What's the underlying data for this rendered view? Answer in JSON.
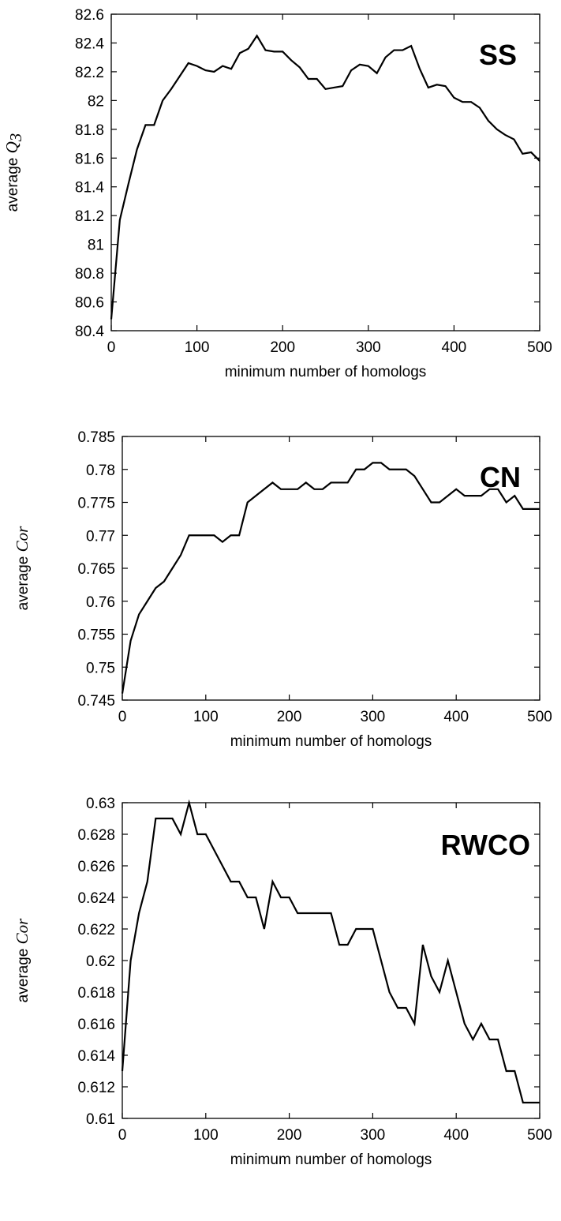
{
  "chart_data": [
    {
      "type": "line",
      "panel_label": "SS",
      "xlabel": "minimum number of homologs",
      "ylabel_prefix": "average",
      "ylabel_symbol": "Q",
      "ylabel_subscript": "3",
      "xlim": [
        0,
        500
      ],
      "ylim": [
        80.4,
        82.6
      ],
      "xticks": [
        0,
        100,
        200,
        300,
        400,
        500
      ],
      "xtick_labels": [
        "0",
        "100",
        "200",
        "300",
        "400",
        "500"
      ],
      "yticks": [
        80.4,
        80.6,
        80.8,
        81,
        81.2,
        81.4,
        81.6,
        81.8,
        82,
        82.2,
        82.4,
        82.6
      ],
      "ytick_labels": [
        "80.4",
        "80.6",
        "80.8",
        "81",
        "81.2",
        "81.4",
        "81.6",
        "81.8",
        "82",
        "82.2",
        "82.4",
        "82.6"
      ],
      "x": [
        0,
        10,
        20,
        30,
        40,
        50,
        60,
        70,
        80,
        90,
        100,
        110,
        120,
        130,
        140,
        150,
        160,
        170,
        180,
        190,
        200,
        210,
        220,
        230,
        240,
        250,
        260,
        270,
        280,
        290,
        300,
        310,
        320,
        330,
        340,
        350,
        360,
        370,
        380,
        390,
        400,
        410,
        420,
        430,
        440,
        450,
        460,
        470,
        480,
        490,
        500
      ],
      "y": [
        80.48,
        81.17,
        81.42,
        81.66,
        81.83,
        81.83,
        82.0,
        82.08,
        82.17,
        82.26,
        82.24,
        82.21,
        82.2,
        82.24,
        82.22,
        82.33,
        82.36,
        82.45,
        82.35,
        82.34,
        82.34,
        82.28,
        82.23,
        82.15,
        82.15,
        82.08,
        82.09,
        82.1,
        82.21,
        82.25,
        82.24,
        82.19,
        82.3,
        82.35,
        82.35,
        82.38,
        82.22,
        82.09,
        82.11,
        82.1,
        82.02,
        81.99,
        81.99,
        81.95,
        81.86,
        81.8,
        81.76,
        81.73,
        81.63,
        81.64,
        81.58
      ]
    },
    {
      "type": "line",
      "panel_label": "CN",
      "xlabel": "minimum number of homologs",
      "ylabel_prefix": "average",
      "ylabel_symbol": "Cor",
      "ylabel_subscript": "",
      "xlim": [
        0,
        500
      ],
      "ylim": [
        0.745,
        0.785
      ],
      "xticks": [
        0,
        100,
        200,
        300,
        400,
        500
      ],
      "xtick_labels": [
        "0",
        "100",
        "200",
        "300",
        "400",
        "500"
      ],
      "yticks": [
        0.745,
        0.75,
        0.755,
        0.76,
        0.765,
        0.77,
        0.775,
        0.78,
        0.785
      ],
      "ytick_labels": [
        "0.745",
        "0.75",
        "0.755",
        "0.76",
        "0.765",
        "0.77",
        "0.775",
        "0.78",
        "0.785"
      ],
      "x": [
        0,
        10,
        20,
        30,
        40,
        50,
        60,
        70,
        80,
        90,
        100,
        110,
        120,
        130,
        140,
        150,
        160,
        170,
        180,
        190,
        200,
        210,
        220,
        230,
        240,
        250,
        260,
        270,
        280,
        290,
        300,
        310,
        320,
        330,
        340,
        350,
        360,
        370,
        380,
        390,
        400,
        410,
        420,
        430,
        440,
        450,
        460,
        470,
        480,
        490,
        500
      ],
      "y": [
        0.746,
        0.754,
        0.758,
        0.76,
        0.762,
        0.763,
        0.765,
        0.767,
        0.77,
        0.77,
        0.77,
        0.77,
        0.769,
        0.77,
        0.77,
        0.775,
        0.776,
        0.777,
        0.778,
        0.777,
        0.777,
        0.777,
        0.778,
        0.777,
        0.777,
        0.778,
        0.778,
        0.778,
        0.78,
        0.78,
        0.781,
        0.781,
        0.78,
        0.78,
        0.78,
        0.779,
        0.777,
        0.775,
        0.775,
        0.776,
        0.777,
        0.776,
        0.776,
        0.776,
        0.777,
        0.777,
        0.775,
        0.776,
        0.774,
        0.774,
        0.774
      ]
    },
    {
      "type": "line",
      "panel_label": "RWCO",
      "xlabel": "minimum number of homologs",
      "ylabel_prefix": "average",
      "ylabel_symbol": "Cor",
      "ylabel_subscript": "",
      "xlim": [
        0,
        500
      ],
      "ylim": [
        0.61,
        0.63
      ],
      "xticks": [
        0,
        100,
        200,
        300,
        400,
        500
      ],
      "xtick_labels": [
        "0",
        "100",
        "200",
        "300",
        "400",
        "500"
      ],
      "yticks": [
        0.61,
        0.612,
        0.614,
        0.616,
        0.618,
        0.62,
        0.622,
        0.624,
        0.626,
        0.628,
        0.63
      ],
      "ytick_labels": [
        "0.61",
        "0.612",
        "0.614",
        "0.616",
        "0.618",
        "0.62",
        "0.622",
        "0.624",
        "0.626",
        "0.628",
        "0.63"
      ],
      "x": [
        0,
        10,
        20,
        30,
        40,
        50,
        60,
        70,
        80,
        90,
        100,
        110,
        120,
        130,
        140,
        150,
        160,
        170,
        180,
        190,
        200,
        210,
        220,
        230,
        240,
        250,
        260,
        270,
        280,
        290,
        300,
        310,
        320,
        330,
        340,
        350,
        360,
        370,
        380,
        390,
        400,
        410,
        420,
        430,
        440,
        450,
        460,
        470,
        480,
        490,
        500
      ],
      "y": [
        0.613,
        0.62,
        0.623,
        0.625,
        0.629,
        0.629,
        0.629,
        0.628,
        0.63,
        0.628,
        0.628,
        0.627,
        0.626,
        0.625,
        0.625,
        0.624,
        0.624,
        0.622,
        0.625,
        0.624,
        0.624,
        0.623,
        0.623,
        0.623,
        0.623,
        0.623,
        0.621,
        0.621,
        0.622,
        0.622,
        0.622,
        0.62,
        0.618,
        0.617,
        0.617,
        0.616,
        0.621,
        0.619,
        0.618,
        0.62,
        0.618,
        0.616,
        0.615,
        0.616,
        0.615,
        0.615,
        0.613,
        0.613,
        0.611,
        0.611,
        0.611
      ]
    }
  ]
}
